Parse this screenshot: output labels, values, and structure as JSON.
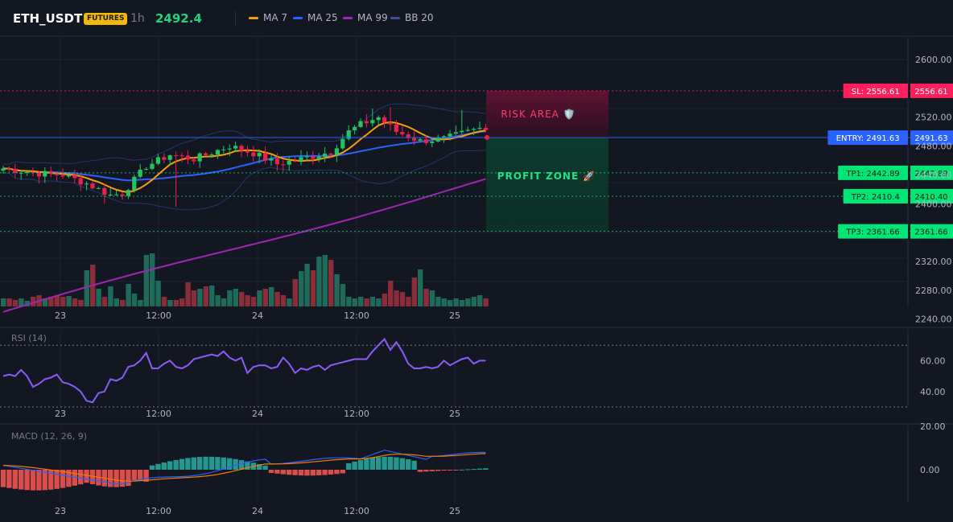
{
  "header": {
    "symbol": "ETH_USDT",
    "badge": "FUTURES",
    "timeframe": "1h",
    "last_price": "2492.4",
    "legend": [
      {
        "label": "MA 7",
        "color": "#f59e0b"
      },
      {
        "label": "MA 25",
        "color": "#2962ff"
      },
      {
        "label": "MA 99",
        "color": "#9c27b0"
      },
      {
        "label": "BB 20",
        "color": "#1e3a8a"
      }
    ]
  },
  "chart_data": [
    {
      "type": "candlestick",
      "y_ticks": [
        "2600.00",
        "2520.00",
        "2480.00",
        "2440.00",
        "2400.00",
        "2320.00",
        "2280.00",
        "2240.00"
      ],
      "x_ticks": [
        "23",
        "12:00",
        "24",
        "12:00",
        "25"
      ],
      "ylim": [
        2216,
        2640
      ],
      "series": [
        {
          "name": "MA 7",
          "color": "#f59e0b"
        },
        {
          "name": "MA 25",
          "color": "#2962ff"
        },
        {
          "name": "MA 99",
          "color": "#9c27b0"
        },
        {
          "name": "BB 20",
          "color": "#1e3a8a"
        }
      ],
      "levels": [
        {
          "label": "SL: 2556.61",
          "value": 2556.61,
          "value_text": "2556.61",
          "color": "#ff1f5a"
        },
        {
          "label": "ENTRY: 2491.63",
          "value": 2491.63,
          "value_text": "2491.63",
          "color": "#2962ff"
        },
        {
          "label": "TP1: 2442.89",
          "value": 2442.89,
          "value_text": "2442.89",
          "color": "#00e676"
        },
        {
          "label": "TP2: 2410.4",
          "value": 2410.4,
          "value_text": "2410.40",
          "color": "#00e676"
        },
        {
          "label": "TP3: 2361.66",
          "value": 2361.66,
          "value_text": "2361.66",
          "color": "#00e676"
        }
      ],
      "risk_label": "RISK AREA 🛡️",
      "profit_label": "PROFIT ZONE 🚀"
    },
    {
      "type": "line",
      "title": "RSI (14)",
      "y_ticks": [
        "60.00",
        "40.00"
      ],
      "x_ticks": [
        "23",
        "12:00",
        "24",
        "12:00",
        "25"
      ],
      "ylim": [
        30,
        80
      ],
      "guides": [
        70,
        30
      ],
      "values": [
        50,
        51,
        50,
        54,
        50,
        43,
        45,
        48,
        49,
        51,
        46,
        45,
        43,
        40,
        34,
        33,
        39,
        40,
        48,
        47,
        49,
        56,
        57,
        60,
        65,
        55,
        55,
        58,
        60,
        56,
        55,
        57,
        61,
        62,
        63,
        64,
        63,
        66,
        62,
        60,
        62,
        52,
        56,
        57,
        57,
        55,
        56,
        62,
        58,
        52,
        55,
        54,
        56,
        57,
        54,
        57,
        58,
        59,
        60,
        61,
        61,
        61,
        66,
        70,
        74,
        67,
        72,
        66,
        58,
        55,
        55,
        56,
        55,
        56,
        60,
        57,
        59,
        61,
        62,
        58,
        60,
        60
      ],
      "color": "#8b5cf6"
    },
    {
      "type": "histogram",
      "title": "MACD (12, 26, 9)",
      "y_ticks": [
        "20.00",
        "0.00"
      ],
      "x_ticks": [
        "23",
        "12:00",
        "24",
        "12:00",
        "25"
      ],
      "ylim": [
        -15,
        22
      ]
    }
  ]
}
